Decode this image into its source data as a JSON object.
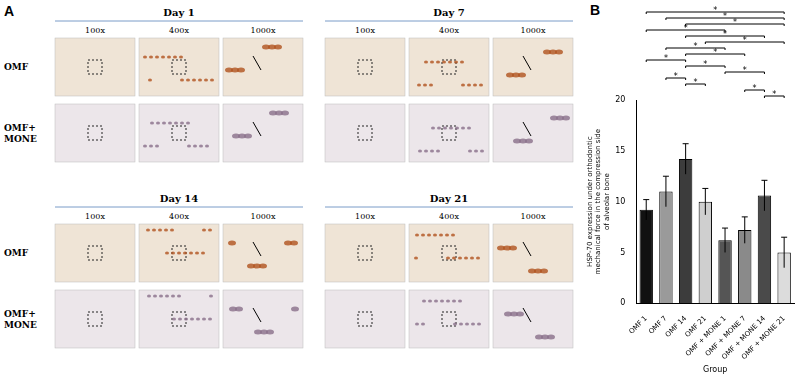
{
  "panel_a": {
    "label": "A",
    "blocks": [
      "Day 1",
      "Day 7",
      "Day 14",
      "Day 21"
    ],
    "magnifications": [
      "100x",
      "400x",
      "1000x"
    ],
    "rows": [
      "OMF",
      "OMF+ MONE"
    ]
  },
  "panel_b": {
    "label": "B"
  },
  "chart_data": {
    "type": "bar",
    "y_label": "HSP-70 expression under orthodontic mechanical force in the compression side of alveolar bone",
    "x_label": "Group",
    "categories": [
      "OMF 1",
      "OMF 7",
      "OMF 14",
      "OMF 21",
      "OMF + MONE 1",
      "OMF + MONE 7",
      "OMF + MONE 14",
      "OMF + MONE 21"
    ],
    "values": [
      9.2,
      11,
      14.2,
      10,
      6.2,
      7.2,
      10.6,
      5
    ],
    "errors": [
      1,
      1.5,
      1.5,
      1.3,
      1.2,
      1.3,
      1.5,
      1.5
    ],
    "colors": [
      "#111111",
      "#9a9a9a",
      "#3c3c3c",
      "#cfcfcf",
      "#555555",
      "#8a8a8a",
      "#4a4a4a",
      "#dcdcdc"
    ],
    "ylim": [
      0,
      20
    ],
    "yticks": [
      0,
      5,
      10,
      15,
      20
    ],
    "grid": false,
    "significance": [
      {
        "pair": [
          0,
          2
        ],
        "label": "*"
      },
      {
        "pair": [
          0,
          4
        ],
        "label": "*"
      },
      {
        "pair": [
          0,
          7
        ],
        "label": "*"
      },
      {
        "pair": [
          1,
          2
        ],
        "label": "*"
      },
      {
        "pair": [
          1,
          4
        ],
        "label": "*"
      },
      {
        "pair": [
          1,
          7
        ],
        "label": "*"
      },
      {
        "pair": [
          2,
          3
        ],
        "label": "*"
      },
      {
        "pair": [
          2,
          4
        ],
        "label": "*"
      },
      {
        "pair": [
          2,
          5
        ],
        "label": "*"
      },
      {
        "pair": [
          2,
          6
        ],
        "label": "*"
      },
      {
        "pair": [
          2,
          7
        ],
        "label": "*"
      },
      {
        "pair": [
          3,
          7
        ],
        "label": "*"
      },
      {
        "pair": [
          4,
          6
        ],
        "label": "*"
      },
      {
        "pair": [
          5,
          6
        ],
        "label": "*"
      },
      {
        "pair": [
          6,
          7
        ],
        "label": "*"
      }
    ]
  }
}
